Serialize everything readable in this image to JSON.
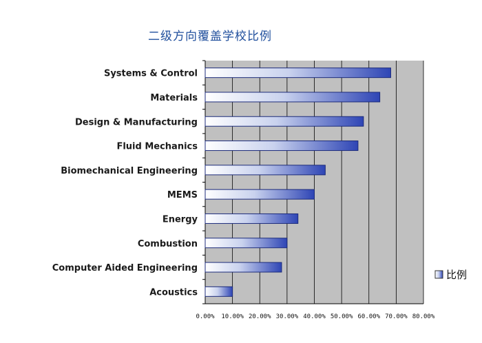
{
  "chart_data": {
    "type": "bar",
    "orientation": "horizontal",
    "title": "二级方向覆盖学校比例",
    "categories": [
      "Systems & Control",
      "Materials",
      "Design & Manufacturing",
      "Fluid Mechanics",
      "Biomechanical Engineering",
      "MEMS",
      "Energy",
      "Combustion",
      "Computer Aided Engineering",
      "Acoustics"
    ],
    "series": [
      {
        "name": "比例",
        "values": [
          68,
          64,
          58,
          56,
          44,
          40,
          34,
          30,
          28,
          10
        ]
      }
    ],
    "xlim": [
      0,
      80
    ],
    "xticks": [
      "0.00%",
      "10.00%",
      "20.00%",
      "30.00%",
      "40.00%",
      "50.00%",
      "60.00%",
      "70.00%",
      "80.00%"
    ],
    "grid": true,
    "legend": "right",
    "xlabel": "",
    "ylabel": "",
    "colors": {
      "plot_bg": "#c0c0c0",
      "bar_dark": "#2e45b5",
      "bar_light": "#ffffff",
      "grid": "#000000",
      "title": "#1f4e9c"
    }
  }
}
